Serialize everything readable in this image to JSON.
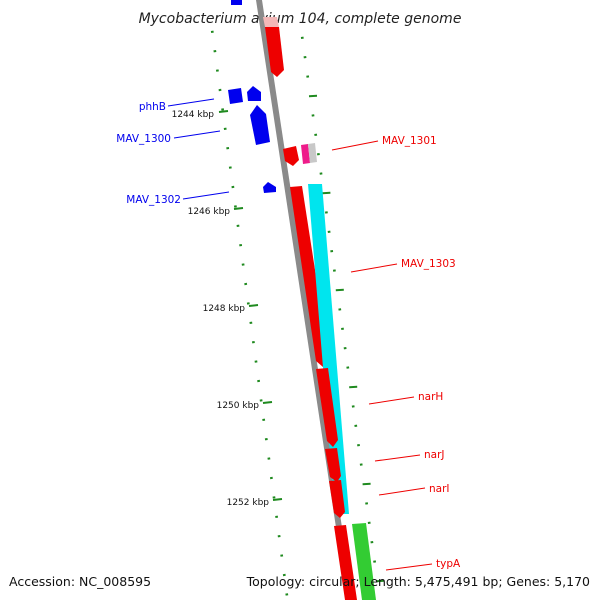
{
  "header": {
    "title": "Mycobacterium avium 104, complete genome"
  },
  "footer": {
    "accession": "Accession: NC_008595",
    "stats": "Topology: circular; Length: 5,475,491 bp; Genes: 5,170"
  },
  "colors": {
    "backbone": "#8a8a8a",
    "tick": "#1f8a1f",
    "minus_strand": "#0000ee",
    "plus_strand": "#ee0000",
    "cyan_track": "#00e5ee",
    "green_track": "#33cc33",
    "magenta": "#ee1c8a",
    "light_gray": "#c8c8c8",
    "pink": "#f4b8b8"
  },
  "ruler": {
    "labels": [
      "1244 kbp",
      "1246 kbp",
      "1248 kbp",
      "1250 kbp",
      "1252 kbp"
    ]
  },
  "genes": [
    {
      "name": "phhB",
      "strand": "minus"
    },
    {
      "name": "MAV_1300",
      "strand": "minus"
    },
    {
      "name": "MAV_1301",
      "strand": "plus"
    },
    {
      "name": "MAV_1302",
      "strand": "minus"
    },
    {
      "name": "MAV_1303",
      "strand": "plus"
    },
    {
      "name": "narH",
      "strand": "plus"
    },
    {
      "name": "narJ",
      "strand": "plus"
    },
    {
      "name": "narI",
      "strand": "plus"
    },
    {
      "name": "typA",
      "strand": "plus"
    }
  ]
}
